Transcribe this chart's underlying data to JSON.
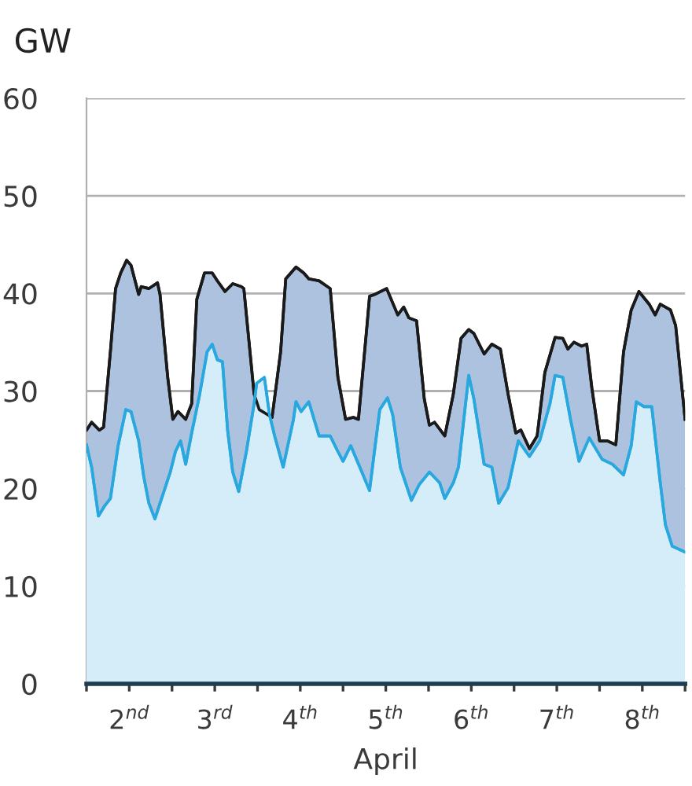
{
  "chart_data": {
    "type": "area",
    "ylabel": "GW",
    "xlabel": "April",
    "xlim": [
      2,
      9
    ],
    "ylim": [
      0,
      60
    ],
    "yticks": [
      0,
      10,
      20,
      30,
      40,
      50,
      60
    ],
    "xticks": [
      {
        "value": 2,
        "label": null
      },
      {
        "value": 2.5,
        "label": "2$^{nd}$"
      },
      {
        "value": 3,
        "label": null
      },
      {
        "value": 3.5,
        "label": "3$^{rd}$"
      },
      {
        "value": 4,
        "label": null
      },
      {
        "value": 4.5,
        "label": "4$^{th}$"
      },
      {
        "value": 5,
        "label": null
      },
      {
        "value": 5.5,
        "label": "5$^{th}$"
      },
      {
        "value": 6,
        "label": null
      },
      {
        "value": 6.5,
        "label": "6$^{th}$"
      },
      {
        "value": 7,
        "label": null
      },
      {
        "value": 7.5,
        "label": "7$^{th}$"
      },
      {
        "value": 8,
        "label": null
      },
      {
        "value": 8.5,
        "label": "8$^{th}$"
      },
      {
        "value": 9,
        "label": null
      }
    ],
    "colors": [
      "#adc2df",
      "#d4edf8"
    ],
    "grid": "y",
    "legend": false,
    "marker": "none",
    "line_style": "solid",
    "series": [
      {
        "color": "#1a1a1a",
        "x": [
          2.0,
          2.06,
          2.15,
          2.2,
          2.28,
          2.34,
          2.4,
          2.47,
          2.52,
          2.61,
          2.64,
          2.73,
          2.83,
          2.86,
          2.95,
          3.01,
          3.07,
          3.16,
          3.23,
          3.29,
          3.38,
          3.47,
          3.53,
          3.62,
          3.71,
          3.81,
          3.84,
          3.9,
          3.96,
          4.02,
          4.17,
          4.27,
          4.33,
          4.45,
          4.54,
          4.6,
          4.72,
          4.85,
          4.94,
          5.03,
          5.12,
          5.18,
          5.28,
          5.31,
          5.37,
          5.51,
          5.64,
          5.71,
          5.77,
          5.86,
          5.95,
          6.01,
          6.07,
          6.19,
          6.29,
          6.38,
          6.47,
          6.53,
          6.65,
          6.74,
          6.84,
          6.93,
          7.02,
          7.08,
          7.18,
          7.27,
          7.36,
          7.48,
          7.57,
          7.63,
          7.7,
          7.79,
          7.85,
          7.91,
          8.0,
          8.09,
          8.19,
          8.28,
          8.37,
          8.46,
          8.58,
          8.65,
          8.71,
          8.83,
          8.89,
          9.0
        ],
        "values": [
          26.0,
          26.8,
          26.0,
          26.3,
          34.1,
          40.5,
          42.1,
          43.4,
          42.9,
          39.9,
          40.7,
          40.5,
          41.1,
          39.9,
          31.4,
          27.1,
          27.9,
          27.1,
          28.7,
          39.4,
          42.1,
          42.1,
          41.3,
          40.2,
          41.0,
          40.7,
          40.5,
          35.1,
          29.7,
          28.1,
          27.3,
          34.0,
          41.5,
          42.7,
          42.1,
          41.5,
          41.3,
          40.5,
          31.4,
          27.1,
          27.3,
          27.1,
          36.7,
          39.7,
          39.9,
          40.5,
          37.8,
          38.6,
          37.5,
          37.2,
          29.2,
          26.5,
          26.8,
          25.4,
          29.7,
          35.4,
          36.3,
          35.9,
          33.8,
          34.8,
          34.3,
          29.7,
          25.7,
          26.0,
          24.1,
          25.4,
          31.9,
          35.5,
          35.4,
          34.3,
          35.0,
          34.6,
          34.8,
          30.3,
          24.9,
          24.9,
          24.5,
          34.0,
          38.3,
          40.2,
          38.9,
          37.8,
          38.9,
          38.3,
          36.7,
          27.1
        ]
      },
      {
        "color": "#29a8e0",
        "x": [
          2.0,
          2.06,
          2.14,
          2.21,
          2.28,
          2.37,
          2.46,
          2.52,
          2.61,
          2.67,
          2.73,
          2.8,
          2.89,
          2.98,
          3.04,
          3.1,
          3.16,
          3.23,
          3.32,
          3.41,
          3.47,
          3.53,
          3.59,
          3.65,
          3.71,
          3.78,
          3.87,
          3.96,
          3.99,
          4.08,
          4.14,
          4.2,
          4.3,
          4.42,
          4.45,
          4.51,
          4.6,
          4.72,
          4.85,
          4.94,
          5.0,
          5.09,
          5.22,
          5.31,
          5.37,
          5.43,
          5.52,
          5.58,
          5.67,
          5.8,
          5.89,
          6.01,
          6.13,
          6.19,
          6.29,
          6.35,
          6.47,
          6.53,
          6.65,
          6.74,
          6.82,
          6.93,
          7.05,
          7.18,
          7.3,
          7.42,
          7.48,
          7.57,
          7.66,
          7.76,
          7.88,
          8.03,
          8.15,
          8.28,
          8.37,
          8.43,
          8.52,
          8.61,
          8.71,
          8.77,
          8.85,
          9.0
        ],
        "values": [
          24.5,
          22.2,
          17.2,
          18.2,
          19.0,
          24.4,
          28.1,
          27.9,
          24.9,
          21.2,
          18.5,
          16.9,
          19.3,
          21.7,
          23.8,
          24.9,
          22.5,
          25.7,
          29.5,
          34.0,
          34.8,
          33.2,
          33.0,
          26.0,
          21.7,
          19.7,
          23.8,
          28.7,
          30.8,
          31.4,
          27.6,
          25.4,
          22.2,
          27.1,
          28.9,
          27.9,
          28.9,
          25.4,
          25.4,
          23.8,
          22.8,
          24.4,
          21.7,
          19.8,
          24.0,
          28.1,
          29.3,
          27.6,
          22.2,
          18.8,
          20.4,
          21.7,
          20.6,
          19.0,
          20.6,
          22.2,
          31.6,
          29.2,
          22.5,
          22.2,
          18.5,
          20.1,
          24.9,
          23.3,
          24.9,
          28.7,
          31.6,
          31.4,
          27.1,
          22.8,
          25.2,
          23.0,
          22.5,
          21.4,
          24.4,
          28.9,
          28.4,
          28.4,
          20.6,
          16.3,
          14.1,
          13.5
        ]
      }
    ]
  }
}
